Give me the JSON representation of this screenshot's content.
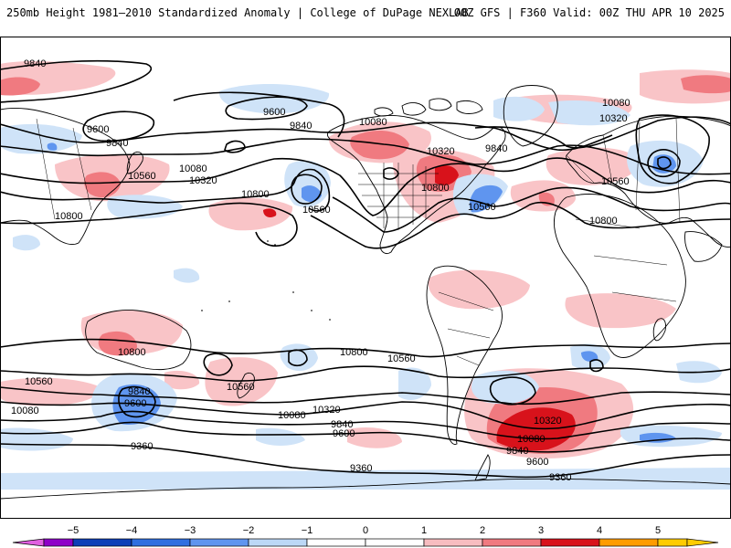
{
  "header": {
    "title_left": "250mb Height 1981–2010 Standardized Anomaly | College of DuPage NEXLAB",
    "title_right": "00Z GFS | F360 Valid: 00Z THU APR 10 2025"
  },
  "colorbar": {
    "ticks": [
      "−5",
      "−4",
      "−3",
      "−2",
      "−1",
      "0",
      "1",
      "2",
      "3",
      "4",
      "5"
    ],
    "colors": [
      "#8e00c8",
      "#0d3fb8",
      "#2f6fe0",
      "#5f95ef",
      "#bcd8f6",
      "#ffffff",
      "#ffffff",
      "#f7bcc0",
      "#f07a80",
      "#d8121b",
      "#ff9c00",
      "#ffcc00"
    ]
  },
  "contour_labels": [
    {
      "id": "l9840a",
      "text": "9840"
    },
    {
      "id": "l9600a",
      "text": "9600"
    },
    {
      "id": "l9840b",
      "text": "9840"
    },
    {
      "id": "l10560a",
      "text": "10560"
    },
    {
      "id": "l10080a",
      "text": "10080"
    },
    {
      "id": "l10320a",
      "text": "10320"
    },
    {
      "id": "l10800a",
      "text": "10800"
    },
    {
      "id": "l10800b",
      "text": "10800"
    },
    {
      "id": "l10560b",
      "text": "10560"
    },
    {
      "id": "l9600b",
      "text": "9600"
    },
    {
      "id": "l9840c",
      "text": "9840"
    },
    {
      "id": "l10080b",
      "text": "10080"
    },
    {
      "id": "l10320b",
      "text": "10320"
    },
    {
      "id": "l10800c",
      "text": "10800"
    },
    {
      "id": "l10560c",
      "text": "10560"
    },
    {
      "id": "l9840d",
      "text": "9840"
    },
    {
      "id": "l10080c",
      "text": "10080"
    },
    {
      "id": "l10320c",
      "text": "10320"
    },
    {
      "id": "l10560d",
      "text": "10560"
    },
    {
      "id": "l10800d",
      "text": "10800"
    },
    {
      "id": "l10800e",
      "text": "10800"
    },
    {
      "id": "l10800f",
      "text": "10800"
    },
    {
      "id": "l10560e",
      "text": "10560"
    },
    {
      "id": "l10560f",
      "text": "10560"
    },
    {
      "id": "l10560g",
      "text": "10560"
    },
    {
      "id": "l9840e",
      "text": "9840"
    },
    {
      "id": "l9600c",
      "text": "9600"
    },
    {
      "id": "l10080d",
      "text": "10080"
    },
    {
      "id": "l10320d",
      "text": "10320"
    },
    {
      "id": "l10080e",
      "text": "10080"
    },
    {
      "id": "l9840f",
      "text": "9840"
    },
    {
      "id": "l9600d",
      "text": "9600"
    },
    {
      "id": "l10320e",
      "text": "10320"
    },
    {
      "id": "l10080f",
      "text": "10080"
    },
    {
      "id": "l9840g",
      "text": "9840"
    },
    {
      "id": "l9600e",
      "text": "9600"
    },
    {
      "id": "l9360a",
      "text": "9360"
    },
    {
      "id": "l9360b",
      "text": "9360"
    },
    {
      "id": "l9360c",
      "text": "9360"
    }
  ]
}
